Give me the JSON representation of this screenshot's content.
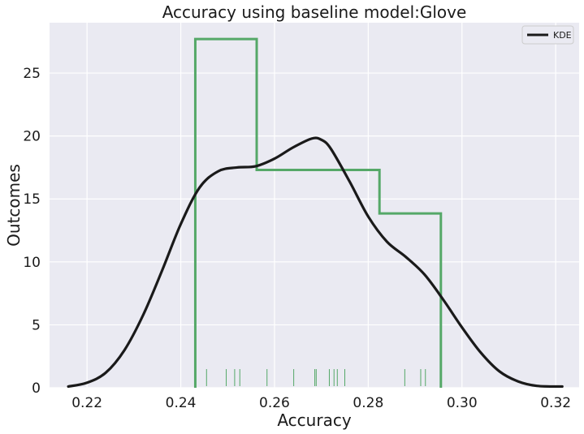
{
  "chart_data": {
    "type": "histogram",
    "title": "Accuracy using baseline model:Glove",
    "xlabel": "Accuracy",
    "ylabel": "Outcomes",
    "xlim": [
      0.212,
      0.325
    ],
    "ylim": [
      0,
      29
    ],
    "xticks": [
      0.22,
      0.24,
      0.26,
      0.28,
      0.3,
      0.32
    ],
    "xtick_labels": [
      "0.22",
      "0.24",
      "0.26",
      "0.28",
      "0.30",
      "0.32"
    ],
    "yticks": [
      0,
      5,
      10,
      15,
      20,
      25
    ],
    "ytick_labels": [
      "0",
      "5",
      "10",
      "15",
      "20",
      "25"
    ],
    "grid": true,
    "background": "#eaeaf2",
    "legend": {
      "placement": "top-right",
      "entries": [
        {
          "label": "KDE",
          "color": "#1a1a1a"
        }
      ]
    },
    "histogram": {
      "color": "#55a868",
      "bin_edges": [
        0.2431,
        0.2562,
        0.2824,
        0.2955
      ],
      "heights": [
        27.7,
        17.3,
        13.85
      ]
    },
    "kde": {
      "name": "KDE",
      "color": "#1a1a1a",
      "x": [
        0.216,
        0.22,
        0.224,
        0.228,
        0.232,
        0.236,
        0.24,
        0.244,
        0.248,
        0.252,
        0.256,
        0.26,
        0.264,
        0.268,
        0.27,
        0.272,
        0.276,
        0.28,
        0.284,
        0.288,
        0.292,
        0.296,
        0.3,
        0.304,
        0.308,
        0.312,
        0.316,
        0.3214
      ],
      "y": [
        0.1,
        0.4,
        1.2,
        3.0,
        5.8,
        9.3,
        13.0,
        15.9,
        17.2,
        17.5,
        17.6,
        18.2,
        19.1,
        19.8,
        19.7,
        19.0,
        16.4,
        13.6,
        11.6,
        10.4,
        9.0,
        7.0,
        4.8,
        2.8,
        1.3,
        0.5,
        0.15,
        0.1
      ]
    },
    "rug": {
      "color": "#55a868",
      "x": [
        0.2455,
        0.2497,
        0.2515,
        0.2526,
        0.2584,
        0.2641,
        0.2686,
        0.2689,
        0.2717,
        0.2727,
        0.2734,
        0.275,
        0.2878,
        0.2912,
        0.2922
      ]
    }
  }
}
